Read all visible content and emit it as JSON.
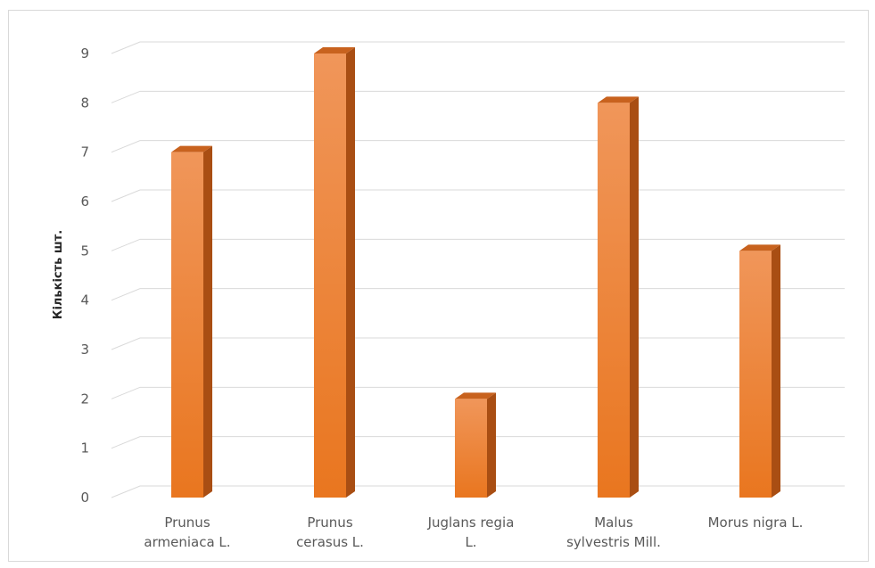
{
  "chart_data": {
    "type": "bar",
    "title": "",
    "xlabel": "",
    "ylabel": "Кількість шт.",
    "ylim": [
      0,
      9
    ],
    "yticks": [
      0,
      1,
      2,
      3,
      4,
      5,
      6,
      7,
      8,
      9
    ],
    "categories": [
      [
        "Prunus",
        "armeniaca L."
      ],
      [
        "Prunus",
        "cerasus L."
      ],
      [
        "Juglans regia",
        "L."
      ],
      [
        "Malus",
        "sylvestris Mill."
      ],
      [
        "Morus nigra L."
      ]
    ],
    "values": [
      7,
      9,
      2,
      8,
      5
    ],
    "grid": true,
    "colors": {
      "bar_front": "#f08a3a",
      "bar_side": "#a94e13",
      "bar_top": "#c8621e",
      "grid": "#d9d9d9",
      "text": "#595959"
    }
  }
}
